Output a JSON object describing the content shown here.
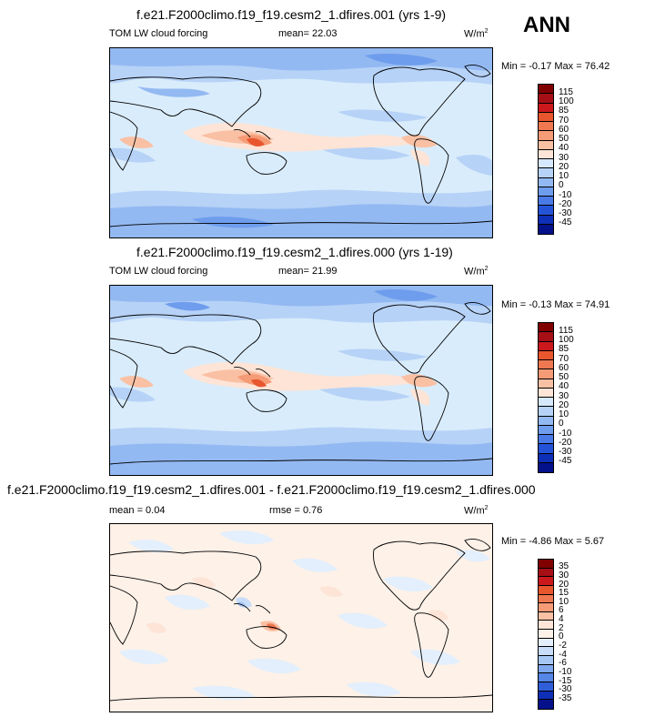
{
  "season": "ANN",
  "panels": [
    {
      "title": "f.e21.F2000climo.f19_f19.cesm2_1.dfires.001 (yrs 1-9)",
      "left_label": "TOM LW cloud forcing",
      "mean_label": "mean=  22.03",
      "units": "W/m",
      "units_sup": "2",
      "minmax": "Min =  -0.17 Max =  76.42"
    },
    {
      "title": "f.e21.F2000climo.f19_f19.cesm2_1.dfires.000 (yrs 1-19)",
      "left_label": "TOM LW cloud forcing",
      "mean_label": "mean=  21.99",
      "units": "W/m",
      "units_sup": "2",
      "minmax": "Min =  -0.13 Max =  74.91"
    },
    {
      "title": "f.e21.F2000climo.f19_f19.cesm2_1.dfires.001 - f.e21.F2000climo.f19_f19.cesm2_1.dfires.000",
      "left_label": "mean =  0.04",
      "mean_label": "rmse =  0.76",
      "units": "W/m",
      "units_sup": "2",
      "minmax": "Min =  -4.86 Max =  5.67"
    }
  ],
  "chart_data": [
    {
      "type": "heatmap",
      "title": "f.e21.F2000climo.f19_f19.cesm2_1.dfires.001 (yrs 1-9)",
      "variable": "TOM LW cloud forcing",
      "units": "W/m2",
      "mean": 22.03,
      "min": -0.17,
      "max": 76.42,
      "colorbar_levels": [
        115,
        100,
        85,
        70,
        60,
        50,
        40,
        30,
        20,
        10,
        0,
        -10,
        -20,
        -30,
        -45
      ],
      "colors": [
        "#800000",
        "#a50f15",
        "#cb181d",
        "#e8562e",
        "#f07850",
        "#f59b76",
        "#f9c0a4",
        "#fde4d6",
        "#d6e8fb",
        "#b6d2f7",
        "#93b9f2",
        "#6f9ded",
        "#4a7ae6",
        "#2553d8",
        "#0e2fb8",
        "#04118a"
      ]
    },
    {
      "type": "heatmap",
      "title": "f.e21.F2000climo.f19_f19.cesm2_1.dfires.000 (yrs 1-19)",
      "variable": "TOM LW cloud forcing",
      "units": "W/m2",
      "mean": 21.99,
      "min": -0.13,
      "max": 74.91,
      "colorbar_levels": [
        115,
        100,
        85,
        70,
        60,
        50,
        40,
        30,
        20,
        10,
        0,
        -10,
        -20,
        -30,
        -45
      ],
      "colors": [
        "#800000",
        "#a50f15",
        "#cb181d",
        "#e8562e",
        "#f07850",
        "#f59b76",
        "#f9c0a4",
        "#fde4d6",
        "#d6e8fb",
        "#b6d2f7",
        "#93b9f2",
        "#6f9ded",
        "#4a7ae6",
        "#2553d8",
        "#0e2fb8",
        "#04118a"
      ]
    },
    {
      "type": "heatmap",
      "title": "f.e21.F2000climo.f19_f19.cesm2_1.dfires.001 - f.e21.F2000climo.f19_f19.cesm2_1.dfires.000",
      "units": "W/m2",
      "mean": 0.04,
      "rmse": 0.76,
      "min": -4.86,
      "max": 5.67,
      "colorbar_levels": [
        35,
        30,
        20,
        15,
        10,
        6,
        4,
        2,
        0,
        -2,
        -4,
        -6,
        -10,
        -15,
        -30,
        -35
      ],
      "colors": [
        "#800000",
        "#a50f15",
        "#cb181d",
        "#e8562e",
        "#f07850",
        "#f59b76",
        "#f9c0a4",
        "#fde4d6",
        "#fdf1e8",
        "#e3effc",
        "#c7ddf9",
        "#a6c7f4",
        "#7fa9ee",
        "#5686e6",
        "#2f5ed8",
        "#0e2fb8",
        "#04118a"
      ]
    }
  ]
}
